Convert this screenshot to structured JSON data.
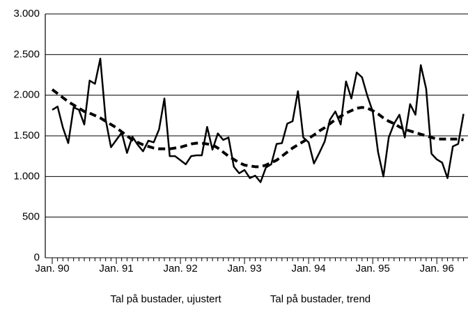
{
  "chart_data": {
    "type": "line",
    "categories": [
      "Jan. 90",
      null,
      null,
      null,
      null,
      null,
      null,
      null,
      null,
      null,
      null,
      null,
      "Jan. 91",
      null,
      null,
      null,
      null,
      null,
      null,
      null,
      null,
      null,
      null,
      null,
      "Jan. 92",
      null,
      null,
      null,
      null,
      null,
      null,
      null,
      null,
      null,
      null,
      null,
      "Jan. 93",
      null,
      null,
      null,
      null,
      null,
      null,
      null,
      null,
      null,
      null,
      null,
      "Jan. 94",
      null,
      null,
      null,
      null,
      null,
      null,
      null,
      null,
      null,
      null,
      null,
      "Jan. 95",
      null,
      null,
      null,
      null,
      null,
      null,
      null,
      null,
      null,
      null,
      null,
      "Jan. 96",
      null,
      null,
      null,
      null,
      null
    ],
    "series": [
      {
        "name": "Tal på bustader, ujustert",
        "color": "#000000",
        "linestyle": "solid",
        "values": [
          1820,
          1860,
          1600,
          1410,
          1850,
          1820,
          1640,
          2180,
          2140,
          2450,
          1700,
          1360,
          1450,
          1540,
          1290,
          1490,
          1390,
          1310,
          1440,
          1420,
          1580,
          1960,
          1250,
          1250,
          1200,
          1150,
          1250,
          1260,
          1260,
          1610,
          1330,
          1530,
          1450,
          1480,
          1120,
          1040,
          1080,
          980,
          1010,
          930,
          1110,
          1150,
          1400,
          1410,
          1650,
          1680,
          2050,
          1480,
          1420,
          1160,
          1290,
          1430,
          1700,
          1800,
          1640,
          2170,
          1960,
          2280,
          2220,
          1990,
          1800,
          1300,
          1000,
          1480,
          1650,
          1760,
          1480,
          1890,
          1760,
          2370,
          2080,
          1280,
          1210,
          1170,
          980,
          1370,
          1400,
          1770
        ]
      },
      {
        "name": "Tal på bustader, trend",
        "color": "#000000",
        "linestyle": "dashed",
        "values": [
          2070,
          2020,
          1970,
          1920,
          1880,
          1840,
          1800,
          1780,
          1750,
          1720,
          1680,
          1640,
          1600,
          1550,
          1500,
          1450,
          1420,
          1390,
          1370,
          1350,
          1340,
          1340,
          1340,
          1350,
          1360,
          1380,
          1400,
          1410,
          1410,
          1400,
          1390,
          1350,
          1300,
          1250,
          1210,
          1170,
          1140,
          1130,
          1120,
          1120,
          1140,
          1170,
          1200,
          1250,
          1300,
          1350,
          1390,
          1430,
          1470,
          1510,
          1560,
          1600,
          1650,
          1700,
          1740,
          1780,
          1810,
          1840,
          1850,
          1840,
          1810,
          1770,
          1720,
          1680,
          1650,
          1610,
          1580,
          1560,
          1540,
          1520,
          1500,
          1480,
          1460,
          1460,
          1460,
          1460,
          1460,
          1450
        ]
      }
    ],
    "ylim": [
      0,
      3000
    ],
    "yticks": [
      0,
      500,
      {
        "value": 1000,
        "label": "1.000"
      },
      {
        "value": 1500,
        "label": "1.500"
      },
      {
        "value": 2000,
        "label": "2.000"
      },
      {
        "value": 2500,
        "label": "2.500"
      },
      {
        "value": 3000,
        "label": "3.000"
      }
    ],
    "grid": true,
    "legend": "bottom"
  }
}
